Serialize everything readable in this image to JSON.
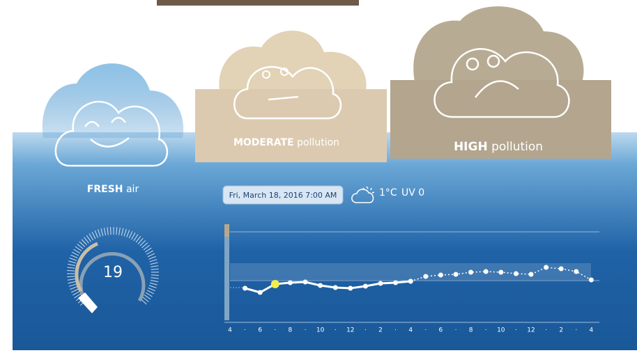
{
  "cards": [
    {
      "level": "FRESH",
      "suffix": "air"
    },
    {
      "level": "MODERATE",
      "suffix": "pollution"
    },
    {
      "level": "HIGH",
      "suffix": "pollution"
    }
  ],
  "date": "Fri, March 18, 2016 7:00 AM",
  "temperature": "1°C",
  "uv": "UV 0",
  "gauge_value": 19,
  "chart_data": {
    "type": "line",
    "categories": [
      "4",
      "·",
      "6",
      "·",
      "8",
      "·",
      "10",
      "·",
      "12",
      "·",
      "2",
      "·",
      "4",
      "·",
      "6",
      "·",
      "8",
      "·",
      "10",
      "·",
      "12",
      "·",
      "2",
      "·",
      "4"
    ],
    "ylim": [
      0,
      100
    ],
    "highlight_index": 3,
    "series": [
      {
        "color": "#ffffff",
        "style": "solid",
        "values": [
          null,
          16,
          10,
          22,
          24,
          25,
          20,
          17,
          16,
          19,
          23,
          24,
          26,
          null,
          null,
          null,
          null,
          null,
          null,
          null,
          null,
          null,
          null,
          null,
          null
        ]
      },
      {
        "color": "#ffffff",
        "style": "dotted",
        "values": [
          null,
          null,
          null,
          null,
          null,
          null,
          null,
          null,
          null,
          null,
          null,
          null,
          26,
          33,
          35,
          36,
          39,
          40,
          39,
          37,
          36,
          46,
          44,
          40,
          28
        ]
      }
    ]
  }
}
